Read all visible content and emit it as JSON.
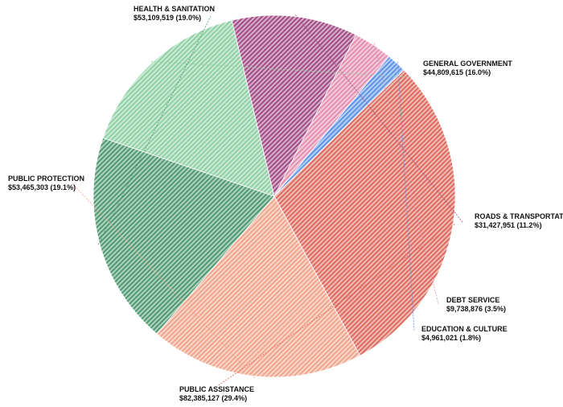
{
  "chart_data": {
    "type": "pie",
    "title": "",
    "slices": [
      {
        "name": "GENERAL GOVERNMENT",
        "amount": "$44,809,615",
        "percent": "16.0%",
        "value": 44809615,
        "color": "#8fd1a5"
      },
      {
        "name": "ROADS & TRANSPORTATION",
        "amount": "$31,427,951",
        "percent": "11.2%",
        "value": 31427951,
        "color": "#a34d86"
      },
      {
        "name": "DEBT SERVICE",
        "amount": "$9,738,876",
        "percent": "3.5%",
        "value": 9738876,
        "color": "#e48fb0"
      },
      {
        "name": "EDUCATION & CULTURE",
        "amount": "$4,961,021",
        "percent": "1.8%",
        "value": 4961021,
        "color": "#5e95e6"
      },
      {
        "name": "PUBLIC ASSISTANCE",
        "amount": "$82,385,127",
        "percent": "29.4%",
        "value": 82385127,
        "color": "#dd6b5e"
      },
      {
        "name": "PUBLIC PROTECTION",
        "amount": "$53,465,303",
        "percent": "19.1%",
        "value": 53465303,
        "color": "#f1a58c"
      },
      {
        "name": "HEALTH & SANITATION",
        "amount": "$53,109,519",
        "percent": "19.0%",
        "value": 53109519,
        "color": "#4f9a72"
      }
    ]
  }
}
